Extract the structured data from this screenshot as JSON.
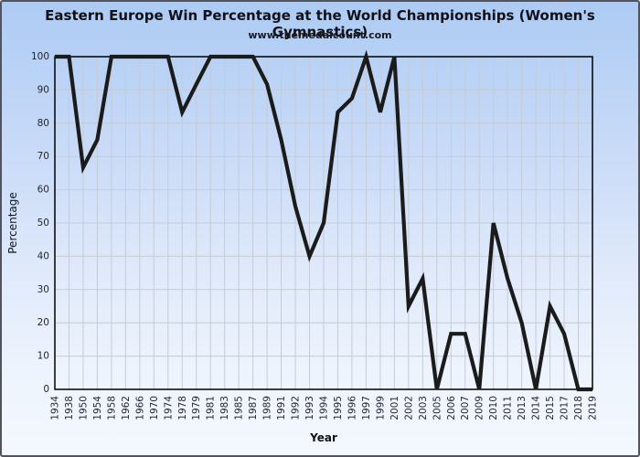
{
  "chart_data": {
    "type": "line",
    "title": "Eastern Europe Win Percentage at the World Championships (Women's Gymnastics)",
    "subtitle": "www.themedalcount.com",
    "xlabel": "Year",
    "ylabel": "Percentage",
    "categories": [
      "1934",
      "1938",
      "1950",
      "1954",
      "1958",
      "1962",
      "1966",
      "1970",
      "1974",
      "1978",
      "1979",
      "1981",
      "1983",
      "1985",
      "1987",
      "1989",
      "1991",
      "1992",
      "1993",
      "1994",
      "1995",
      "1996",
      "1997",
      "1999",
      "2001",
      "2002",
      "2003",
      "2005",
      "2006",
      "2007",
      "2009",
      "2010",
      "2011",
      "2013",
      "2014",
      "2015",
      "2017",
      "2018",
      "2019"
    ],
    "values": [
      100,
      100,
      66.7,
      75,
      100,
      100,
      100,
      100,
      100,
      83.3,
      91.7,
      100,
      100,
      100,
      100,
      91.7,
      75,
      55,
      40,
      50,
      83.3,
      87.5,
      100,
      83.3,
      100,
      25,
      33.3,
      0,
      16.7,
      16.7,
      0,
      50,
      33.3,
      20,
      0,
      25,
      16.7,
      0,
      0
    ],
    "ylim": [
      0,
      100
    ],
    "ytick_step": 10,
    "grid": true,
    "legend": "none",
    "line_color": "#1b1b1b",
    "grid_color": "#c6cbd4",
    "spine_color": "#000000",
    "tick_color": "#26262e",
    "background_top": "#adcbf3",
    "background_bottom": "#f4f8fe"
  }
}
